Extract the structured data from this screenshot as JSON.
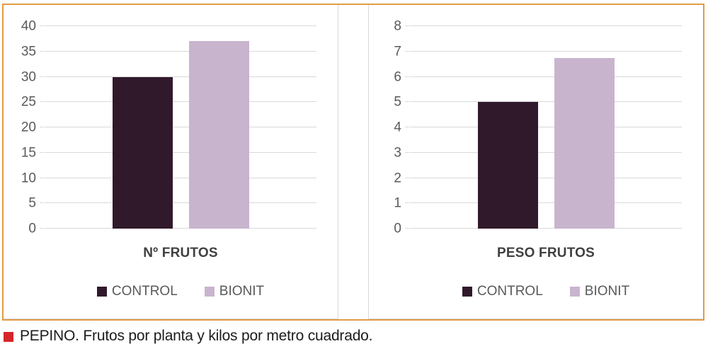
{
  "frame": {
    "border_color": "#e19b46",
    "divider_color": "#d9d9d9"
  },
  "styles": {
    "gridline_color": "#d9d9d9",
    "axis_text_color": "#595959",
    "category_label_color": "#404040",
    "legend_text_color": "#595959"
  },
  "caption": {
    "bullet_icon": "red-square",
    "bullet_color": "#d5252b",
    "text": "PEPINO. Frutos por planta y kilos por metro cuadrado."
  },
  "chart_data": [
    {
      "type": "bar",
      "title": "",
      "categories": [
        "Nº FRUTOS"
      ],
      "series": [
        {
          "name": "CONTROL",
          "values": [
            30
          ],
          "color": "#31192c"
        },
        {
          "name": "BIONIT",
          "values": [
            37
          ],
          "color": "#c9b4ce"
        }
      ],
      "ylim": [
        0,
        40
      ],
      "yticks": [
        0,
        5,
        10,
        15,
        20,
        25,
        30,
        35,
        40
      ],
      "grid": true,
      "legend_position": "bottom"
    },
    {
      "type": "bar",
      "title": "",
      "categories": [
        "PESO FRUTOS"
      ],
      "series": [
        {
          "name": "CONTROL",
          "values": [
            5
          ],
          "color": "#31192c"
        },
        {
          "name": "BIONIT",
          "values": [
            6.75
          ],
          "color": "#c9b4ce"
        }
      ],
      "ylim": [
        0,
        8
      ],
      "yticks": [
        0,
        1,
        2,
        3,
        4,
        5,
        6,
        7,
        8
      ],
      "grid": true,
      "legend_position": "bottom"
    }
  ]
}
